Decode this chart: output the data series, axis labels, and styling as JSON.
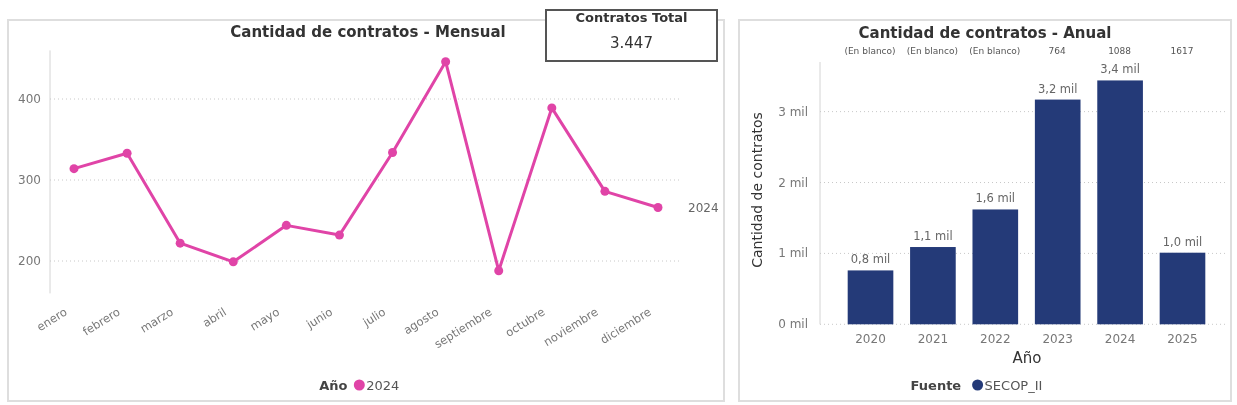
{
  "chart_data": [
    {
      "type": "line",
      "title": "Cantidad de contratos - Mensual",
      "categories": [
        "enero",
        "febrero",
        "marzo",
        "abril",
        "mayo",
        "junio",
        "julio",
        "agosto",
        "septiembre",
        "octubre",
        "noviembre",
        "diciembre"
      ],
      "series": [
        {
          "name": "2024",
          "color": "#e044a7",
          "values": [
            314,
            333,
            222,
            199,
            244,
            232,
            334,
            446,
            188,
            389,
            286,
            266
          ]
        }
      ],
      "ylim": [
        160,
        460
      ],
      "yticks": [
        200,
        300,
        400
      ],
      "grid": "y",
      "marker": "circle",
      "legend": "bottom",
      "legend_title": "Año"
    },
    {
      "type": "other",
      "title": "Contratos Total",
      "annotations": [
        "3.447"
      ]
    },
    {
      "type": "bar",
      "title": "Cantidad de contratos - Anual",
      "categories": [
        "2020",
        "2021",
        "2022",
        "2023",
        "2024",
        "2025"
      ],
      "series": [
        {
          "name": "SECOP_II",
          "color": "#243a78",
          "values": [
            0.76,
            1.09,
            1.62,
            3.17,
            3.44,
            1.01
          ],
          "value_labels": [
            "0,8 mil",
            "1,1 mil",
            "1,6 mil",
            "3,2 mil",
            "3,4 mil",
            "1,0 mil"
          ]
        }
      ],
      "ylim": [
        0,
        3.7
      ],
      "yticks": [
        {
          "value": 0,
          "label": "0 mil"
        },
        {
          "value": 1,
          "label": "1 mil"
        },
        {
          "value": 2,
          "label": "2 mil"
        },
        {
          "value": 3,
          "label": "3 mil"
        }
      ],
      "xlabel": "Año",
      "ylabel": "Cantidad de contratos",
      "grid": "y",
      "legend": "bottom",
      "legend_title": "Fuente",
      "annotations": [
        "(En blanco)",
        "(En blanco)",
        "(En blanco)",
        "764",
        "1088",
        "1617"
      ]
    }
  ]
}
